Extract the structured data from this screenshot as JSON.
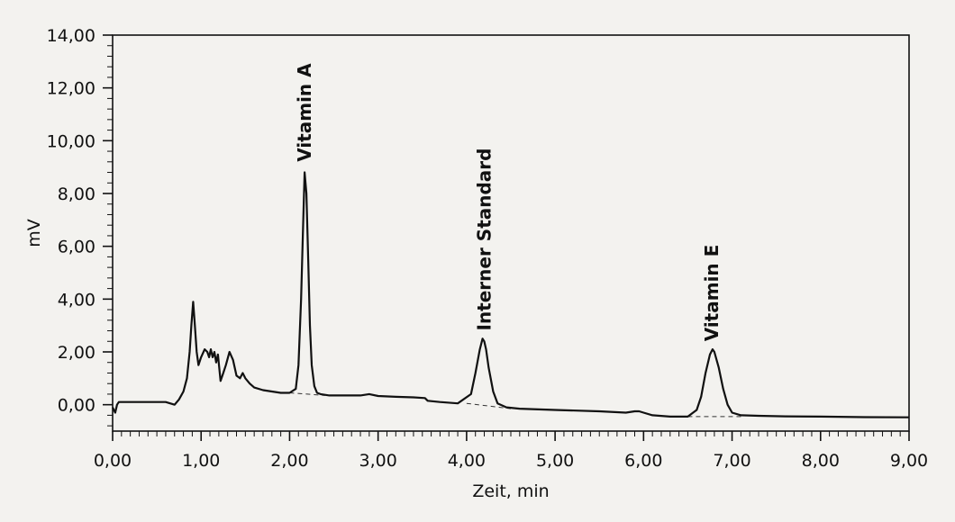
{
  "chart_data": {
    "type": "line",
    "title": "",
    "xlabel": "Zeit, min",
    "ylabel": "mV",
    "xlim": [
      0,
      9
    ],
    "ylim": [
      -1,
      14
    ],
    "grid": false,
    "x_ticks": [
      "0,00",
      "1,00",
      "2,00",
      "3,00",
      "4,00",
      "5,00",
      "6,00",
      "7,00",
      "8,00",
      "9,00"
    ],
    "y_ticks": [
      "0,00",
      "2,00",
      "4,00",
      "6,00",
      "8,00",
      "10,00",
      "12,00",
      "14,00"
    ],
    "annotations": [
      {
        "text": "Vitamin A",
        "x": 2.17,
        "y": 9.2
      },
      {
        "text": "Interner Standard",
        "x": 4.2,
        "y": 2.8
      },
      {
        "text": "Vitamin E",
        "x": 6.77,
        "y": 2.4
      }
    ],
    "series": [
      {
        "x": [
          0.0,
          0.03,
          0.05,
          0.07,
          0.1,
          0.3,
          0.5,
          0.6,
          0.7,
          0.75,
          0.8,
          0.84,
          0.87,
          0.89,
          0.91,
          0.93,
          0.95,
          0.97,
          1.0,
          1.04,
          1.07,
          1.09,
          1.11,
          1.13,
          1.15,
          1.17,
          1.19,
          1.22,
          1.25,
          1.28,
          1.32,
          1.36,
          1.4,
          1.44,
          1.47,
          1.5,
          1.55,
          1.6,
          1.7,
          1.8,
          1.9,
          2.0,
          2.07,
          2.1,
          2.13,
          2.15,
          2.17,
          2.19,
          2.21,
          2.23,
          2.25,
          2.28,
          2.31,
          2.35,
          2.45,
          2.6,
          2.8,
          2.9,
          3.0,
          3.2,
          3.4,
          3.53,
          3.56,
          3.7,
          3.9,
          4.05,
          4.1,
          4.15,
          4.18,
          4.2,
          4.22,
          4.25,
          4.3,
          4.35,
          4.45,
          4.6,
          5.0,
          5.5,
          5.8,
          5.9,
          5.95,
          6.0,
          6.1,
          6.3,
          6.5,
          6.6,
          6.65,
          6.7,
          6.75,
          6.78,
          6.8,
          6.85,
          6.9,
          6.95,
          7.0,
          7.1,
          7.3,
          7.6,
          8.0,
          8.5,
          9.0
        ],
        "y": [
          -0.1,
          -0.3,
          0.0,
          0.1,
          0.1,
          0.1,
          0.1,
          0.1,
          0.0,
          0.2,
          0.5,
          1.0,
          2.0,
          3.0,
          3.9,
          3.0,
          2.0,
          1.5,
          1.8,
          2.1,
          2.0,
          1.8,
          2.1,
          1.8,
          2.0,
          1.6,
          1.9,
          0.9,
          1.2,
          1.5,
          2.0,
          1.7,
          1.1,
          1.0,
          1.2,
          1.0,
          0.8,
          0.65,
          0.55,
          0.5,
          0.45,
          0.45,
          0.6,
          1.5,
          4.0,
          6.5,
          8.8,
          8.0,
          5.5,
          3.0,
          1.5,
          0.7,
          0.45,
          0.4,
          0.35,
          0.35,
          0.35,
          0.4,
          0.33,
          0.3,
          0.28,
          0.25,
          0.15,
          0.1,
          0.05,
          0.4,
          1.2,
          2.1,
          2.5,
          2.4,
          2.1,
          1.4,
          0.5,
          0.05,
          -0.1,
          -0.15,
          -0.2,
          -0.25,
          -0.3,
          -0.25,
          -0.25,
          -0.3,
          -0.4,
          -0.45,
          -0.45,
          -0.2,
          0.3,
          1.2,
          1.9,
          2.1,
          2.0,
          1.4,
          0.6,
          0.0,
          -0.3,
          -0.4,
          -0.42,
          -0.44,
          -0.45,
          -0.47,
          -0.48
        ]
      }
    ],
    "baselines": [
      {
        "x": [
          2.0,
          2.4
        ],
        "y": [
          0.45,
          0.35
        ]
      },
      {
        "x": [
          4.0,
          4.5
        ],
        "y": [
          0.05,
          -0.15
        ]
      },
      {
        "x": [
          6.5,
          7.1
        ],
        "y": [
          -0.45,
          -0.45
        ]
      }
    ],
    "colors": {
      "line": "#111111",
      "background": "#f3f2ef"
    }
  }
}
